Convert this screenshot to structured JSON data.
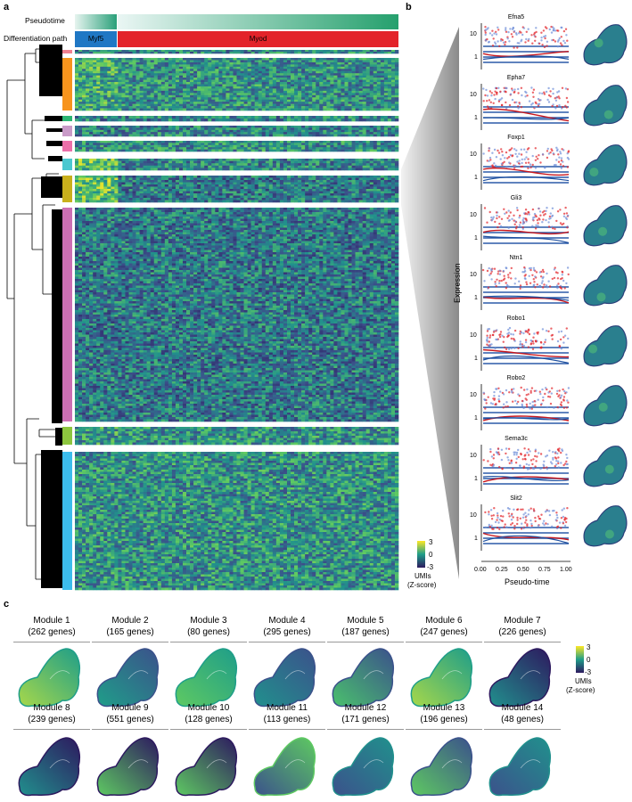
{
  "panels": {
    "a": "a",
    "b": "b",
    "c": "c"
  },
  "heatmap": {
    "row_labels": {
      "pseudotime": "Pseudotime",
      "path": "Differentiation path"
    },
    "path_segments": [
      {
        "label": "Myf5",
        "color": "#1f77c4"
      },
      {
        "label": "Myod",
        "color": "#e3232a"
      }
    ],
    "module_colors": [
      "#f7941d",
      "#2bb673",
      "#c99bc8",
      "#ec6fa9",
      "#4bc8d0",
      "#c9b01c",
      "#cc6fb4",
      "#8dc63f",
      "#3cbcec"
    ],
    "colorscale": {
      "low": "#2d1a5f",
      "mid": "#1f9e89",
      "high": "#fde725"
    },
    "legend": {
      "max": "3",
      "mid": "0",
      "min": "-3",
      "title1": "UMIs",
      "title2": "(Z-score)"
    }
  },
  "genes": {
    "names": [
      "Efna5",
      "Epha7",
      "Foxp1",
      "Gli3",
      "Ntn1",
      "Robo1",
      "Robo2",
      "Sema3c",
      "Slit2"
    ],
    "y_ticks": [
      "10",
      "1"
    ],
    "x_ticks": [
      "0.00",
      "0.25",
      "0.50",
      "0.75",
      "1.00"
    ],
    "y_title": "Expression",
    "x_title": "Pseudo-time"
  },
  "modules": {
    "row1": [
      {
        "name": "Module 1",
        "genes": "(262 genes)"
      },
      {
        "name": "Module 2",
        "genes": "(165 genes)"
      },
      {
        "name": "Module 3",
        "genes": "(80 genes)"
      },
      {
        "name": "Module 4",
        "genes": "(295 genes)"
      },
      {
        "name": "Module 5",
        "genes": "(187 genes)"
      },
      {
        "name": "Module 6",
        "genes": "(247 genes)"
      },
      {
        "name": "Module 7",
        "genes": "(226 genes)"
      }
    ],
    "row2": [
      {
        "name": "Module 8",
        "genes": "(239 genes)"
      },
      {
        "name": "Module 9",
        "genes": "(551 genes)"
      },
      {
        "name": "Module 10",
        "genes": "(128 genes)"
      },
      {
        "name": "Module 11",
        "genes": "(113 genes)"
      },
      {
        "name": "Module 12",
        "genes": "(171 genes)"
      },
      {
        "name": "Module 13",
        "genes": "(196 genes)"
      },
      {
        "name": "Module 14",
        "genes": "(48 genes)"
      }
    ],
    "legend": {
      "max": "3",
      "mid": "0",
      "min": "-3",
      "title1": "UMIs",
      "title2": "(Z-score)"
    }
  }
}
